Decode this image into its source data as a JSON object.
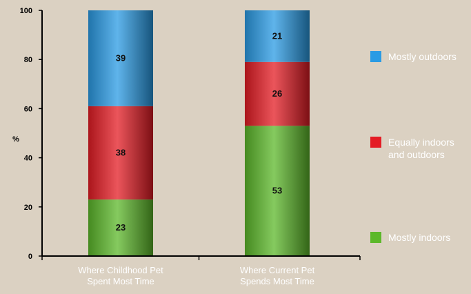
{
  "chart_data": {
    "type": "bar",
    "stacked": true,
    "categories": [
      [
        "Where Childhood Pet",
        "Spent Most Time"
      ],
      [
        "Where Current Pet",
        "Spends Most Time"
      ]
    ],
    "series": [
      {
        "name": "Mostly indoors",
        "values": [
          23,
          53
        ],
        "color": "#5cb82a"
      },
      {
        "name": "Equally indoors and outdoors",
        "legend_lines": [
          "Equally indoors",
          "and outdoors"
        ],
        "values": [
          38,
          26
        ],
        "color": "#e41c24"
      },
      {
        "name": "Mostly outdoors",
        "values": [
          39,
          21
        ],
        "color": "#2a9be4"
      }
    ],
    "ylabel": "%",
    "ylim": [
      0,
      100
    ],
    "yticks": [
      0,
      20,
      40,
      60,
      80,
      100
    ],
    "legend_position": "right",
    "grid": false
  }
}
